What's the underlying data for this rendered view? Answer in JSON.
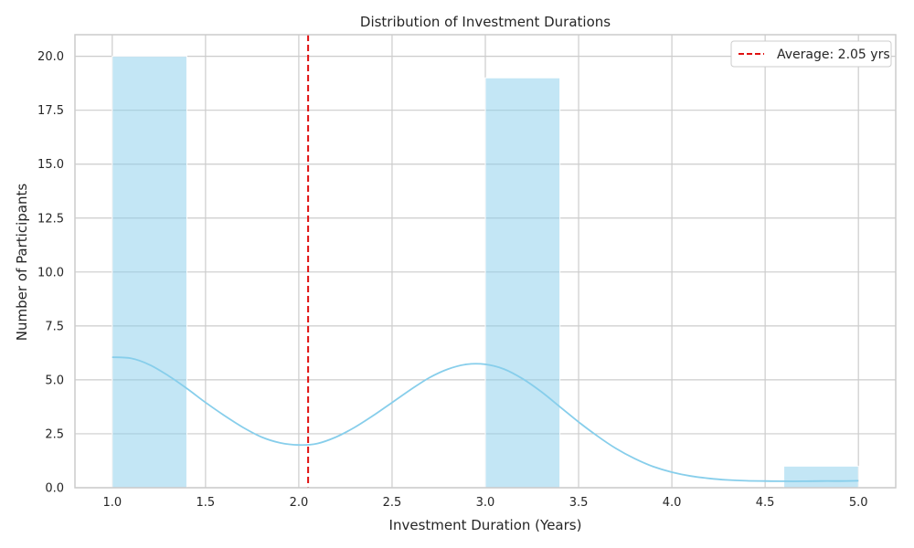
{
  "chart_data": {
    "type": "bar",
    "title": "Distribution of Investment Durations",
    "xlabel": "Investment Duration (Years)",
    "ylabel": "Number of Participants",
    "xlim": [
      0.8,
      5.2
    ],
    "ylim": [
      0,
      21
    ],
    "x_ticks": [
      1.0,
      1.5,
      2.0,
      2.5,
      3.0,
      3.5,
      4.0,
      4.5,
      5.0
    ],
    "y_ticks": [
      0.0,
      2.5,
      5.0,
      7.5,
      10.0,
      12.5,
      15.0,
      17.5,
      20.0
    ],
    "x_tick_labels": [
      "1.0",
      "1.5",
      "2.0",
      "2.5",
      "3.0",
      "3.5",
      "4.0",
      "4.5",
      "5.0"
    ],
    "y_tick_labels": [
      "0.0",
      "2.5",
      "5.0",
      "7.5",
      "10.0",
      "12.5",
      "15.0",
      "17.5",
      "20.0"
    ],
    "grid": true,
    "bins": [
      {
        "x0": 1.0,
        "x1": 1.4,
        "count": 20
      },
      {
        "x0": 3.0,
        "x1": 3.4,
        "count": 19
      },
      {
        "x0": 4.6,
        "x1": 5.0,
        "count": 1
      }
    ],
    "kde_curve": {
      "x": [
        1.0,
        1.1,
        1.2,
        1.3,
        1.4,
        1.5,
        1.6,
        1.7,
        1.8,
        1.9,
        2.0,
        2.1,
        2.2,
        2.3,
        2.4,
        2.5,
        2.6,
        2.7,
        2.8,
        2.9,
        3.0,
        3.1,
        3.2,
        3.3,
        3.4,
        3.5,
        3.6,
        3.7,
        3.8,
        3.9,
        4.0,
        4.1,
        4.2,
        4.3,
        4.4,
        4.5,
        4.6,
        4.7,
        4.8,
        4.9,
        5.0
      ],
      "y": [
        6.05,
        6.0,
        5.7,
        5.2,
        4.6,
        3.95,
        3.35,
        2.8,
        2.35,
        2.08,
        1.98,
        2.05,
        2.35,
        2.8,
        3.35,
        3.95,
        4.55,
        5.1,
        5.5,
        5.72,
        5.72,
        5.5,
        5.05,
        4.45,
        3.75,
        3.05,
        2.4,
        1.82,
        1.35,
        0.98,
        0.72,
        0.54,
        0.43,
        0.36,
        0.32,
        0.31,
        0.3,
        0.3,
        0.31,
        0.31,
        0.32
      ]
    },
    "average": {
      "value": 2.05,
      "label": "Average: 2.05 yrs"
    },
    "legend_position": "top-right",
    "colors": {
      "bar_fill": "#87ceeb",
      "bar_opacity": 0.5,
      "kde_line": "#87ceeb",
      "average_line": "#e01010",
      "grid": "#cccccc",
      "axes_edge": "#cccccc"
    }
  }
}
